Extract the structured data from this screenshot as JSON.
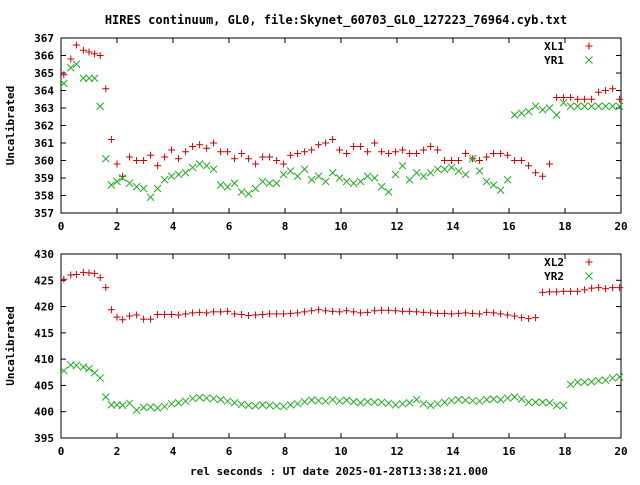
{
  "title": "HIRES continuum, GL0, file:Skynet_60703_GL0_127223_76964.cyb.txt",
  "xlabel": "rel seconds : UT date 2025-01-28T13:38:21.000",
  "colors": {
    "red": "#cc0000",
    "green": "#22aa22",
    "axis": "#000000"
  },
  "chart_data": [
    {
      "type": "scatter",
      "ylabel": "Uncalibrated",
      "xlim": [
        0,
        20
      ],
      "ylim": [
        357,
        367
      ],
      "xticks": [
        0,
        2,
        4,
        6,
        8,
        10,
        12,
        14,
        16,
        18,
        20
      ],
      "yticks": [
        357,
        358,
        359,
        360,
        361,
        362,
        363,
        364,
        365,
        366,
        367
      ],
      "legend_position": "top-right",
      "series": [
        {
          "name": "XL1",
          "marker": "plus",
          "color": "#cc0000",
          "x": [
            0.1,
            0.35,
            0.55,
            0.8,
            1.0,
            1.2,
            1.4,
            1.6,
            1.8,
            2.0,
            2.2,
            2.45,
            2.7,
            2.95,
            3.2,
            3.45,
            3.7,
            3.95,
            4.2,
            4.45,
            4.7,
            4.95,
            5.2,
            5.45,
            5.7,
            5.95,
            6.2,
            6.45,
            6.7,
            6.95,
            7.2,
            7.45,
            7.7,
            7.95,
            8.2,
            8.45,
            8.7,
            8.95,
            9.2,
            9.45,
            9.7,
            9.95,
            10.2,
            10.45,
            10.7,
            10.95,
            11.2,
            11.45,
            11.7,
            11.95,
            12.2,
            12.45,
            12.7,
            12.95,
            13.2,
            13.45,
            13.7,
            13.95,
            14.2,
            14.45,
            14.7,
            14.95,
            15.2,
            15.45,
            15.7,
            15.95,
            16.2,
            16.45,
            16.7,
            16.95,
            17.2,
            17.45,
            17.7,
            17.95,
            18.2,
            18.45,
            18.7,
            18.95,
            19.2,
            19.45,
            19.7,
            19.95
          ],
          "y": [
            364.9,
            365.8,
            366.6,
            366.3,
            366.2,
            366.1,
            366.0,
            364.1,
            361.2,
            359.8,
            359.1,
            360.2,
            360.0,
            360.0,
            360.3,
            359.7,
            360.2,
            360.6,
            360.1,
            360.5,
            360.8,
            360.9,
            360.7,
            361.0,
            360.5,
            360.5,
            360.1,
            360.4,
            360.1,
            359.8,
            360.2,
            360.2,
            360.0,
            359.8,
            360.3,
            360.4,
            360.5,
            360.6,
            360.9,
            361.0,
            361.2,
            360.6,
            360.4,
            360.8,
            360.8,
            360.5,
            361.0,
            360.5,
            360.4,
            360.5,
            360.6,
            360.4,
            360.4,
            360.6,
            360.8,
            360.6,
            360.0,
            360.0,
            360.0,
            360.4,
            360.1,
            360.0,
            360.2,
            360.4,
            360.4,
            360.3,
            360.0,
            360.0,
            359.7,
            359.3,
            359.1,
            359.8,
            363.6,
            363.6,
            363.6,
            363.5,
            363.5,
            363.5,
            363.9,
            364.0,
            364.1,
            363.5
          ],
          "x_override_note": ""
        },
        {
          "name": "YR1",
          "marker": "cross",
          "color": "#22aa22",
          "x": [
            0.1,
            0.35,
            0.55,
            0.8,
            1.0,
            1.2,
            1.4,
            1.6,
            1.8,
            2.0,
            2.2,
            2.45,
            2.7,
            2.95,
            3.2,
            3.45,
            3.7,
            3.95,
            4.2,
            4.45,
            4.7,
            4.95,
            5.2,
            5.45,
            5.7,
            5.95,
            6.2,
            6.45,
            6.7,
            6.95,
            7.2,
            7.45,
            7.7,
            7.95,
            8.2,
            8.45,
            8.7,
            8.95,
            9.2,
            9.45,
            9.7,
            9.95,
            10.2,
            10.45,
            10.7,
            10.95,
            11.2,
            11.45,
            11.7,
            11.95,
            12.2,
            12.45,
            12.7,
            12.95,
            13.2,
            13.45,
            13.7,
            13.95,
            14.2,
            14.45,
            14.7,
            14.95,
            15.2,
            15.45,
            15.7,
            15.95,
            16.2,
            16.45,
            16.7,
            16.95,
            17.2,
            17.45,
            17.7,
            17.95,
            18.2,
            18.45,
            18.7,
            18.95,
            19.2,
            19.45,
            19.7,
            19.95
          ],
          "y": [
            364.4,
            365.3,
            365.5,
            364.7,
            364.7,
            364.7,
            363.1,
            360.1,
            358.6,
            358.8,
            359.0,
            358.7,
            358.5,
            358.4,
            357.9,
            358.4,
            358.9,
            359.1,
            359.2,
            359.3,
            359.6,
            359.8,
            359.7,
            359.5,
            358.6,
            358.5,
            358.7,
            358.2,
            358.1,
            358.4,
            358.8,
            358.7,
            358.7,
            359.2,
            359.4,
            359.1,
            359.5,
            358.9,
            359.1,
            358.8,
            359.3,
            359.0,
            358.8,
            358.7,
            358.8,
            359.1,
            359.0,
            358.5,
            358.2,
            359.2,
            359.7,
            358.9,
            359.3,
            359.1,
            359.3,
            359.5,
            359.5,
            359.6,
            359.4,
            359.2,
            360.1,
            359.4,
            358.8,
            358.6,
            358.3,
            358.9,
            362.6,
            362.7,
            362.8,
            363.1,
            362.9,
            363.0,
            362.6,
            363.3,
            363.1,
            363.1,
            363.1,
            363.1,
            363.1,
            363.1,
            363.1,
            363.1
          ]
        }
      ]
    },
    {
      "type": "scatter",
      "ylabel": "Uncalibrated",
      "xlim": [
        0,
        20
      ],
      "ylim": [
        395,
        430
      ],
      "xticks": [
        0,
        2,
        4,
        6,
        8,
        10,
        12,
        14,
        16,
        18,
        20
      ],
      "yticks": [
        395,
        400,
        405,
        410,
        415,
        420,
        425,
        430
      ],
      "legend_position": "top-right",
      "series": [
        {
          "name": "XL2",
          "marker": "plus",
          "color": "#cc0000",
          "x": [
            0.1,
            0.35,
            0.55,
            0.8,
            1.0,
            1.2,
            1.4,
            1.6,
            1.8,
            2.0,
            2.2,
            2.45,
            2.7,
            2.95,
            3.2,
            3.45,
            3.7,
            3.95,
            4.2,
            4.45,
            4.7,
            4.95,
            5.2,
            5.45,
            5.7,
            5.95,
            6.2,
            6.45,
            6.7,
            6.95,
            7.2,
            7.45,
            7.7,
            7.95,
            8.2,
            8.45,
            8.7,
            8.95,
            9.2,
            9.45,
            9.7,
            9.95,
            10.2,
            10.45,
            10.7,
            10.95,
            11.2,
            11.45,
            11.7,
            11.95,
            12.2,
            12.45,
            12.7,
            12.95,
            13.2,
            13.45,
            13.7,
            13.95,
            14.2,
            14.45,
            14.7,
            14.95,
            15.2,
            15.45,
            15.7,
            15.95,
            16.2,
            16.45,
            16.7,
            16.95,
            17.2,
            17.45,
            17.7,
            17.95,
            18.2,
            18.45,
            18.7,
            18.95,
            19.2,
            19.45,
            19.7,
            19.95
          ],
          "y": [
            425.2,
            426.0,
            426.1,
            426.5,
            426.4,
            426.3,
            425.5,
            423.6,
            419.4,
            418.0,
            417.5,
            418.2,
            418.4,
            417.6,
            417.6,
            418.5,
            418.5,
            418.5,
            418.4,
            418.6,
            418.8,
            418.9,
            418.8,
            419.0,
            419.0,
            419.1,
            418.6,
            418.5,
            418.3,
            418.4,
            418.5,
            418.6,
            418.6,
            418.6,
            418.7,
            418.8,
            419.0,
            419.2,
            419.4,
            419.2,
            419.1,
            419.0,
            419.2,
            419.0,
            418.8,
            418.9,
            419.2,
            419.3,
            419.3,
            419.2,
            419.1,
            419.1,
            419.0,
            418.9,
            418.8,
            418.7,
            418.7,
            418.6,
            418.7,
            418.8,
            418.7,
            418.6,
            418.9,
            418.8,
            418.6,
            418.4,
            418.2,
            417.9,
            417.7,
            417.9,
            422.7,
            422.8,
            422.8,
            422.9,
            422.9,
            422.9,
            423.2,
            423.5,
            423.6,
            423.4,
            423.6,
            423.6
          ]
        },
        {
          "name": "YR2",
          "marker": "cross",
          "color": "#22aa22",
          "x": [
            0.1,
            0.35,
            0.55,
            0.8,
            1.0,
            1.2,
            1.4,
            1.6,
            1.8,
            2.0,
            2.2,
            2.45,
            2.7,
            2.95,
            3.2,
            3.45,
            3.7,
            3.95,
            4.2,
            4.45,
            4.7,
            4.95,
            5.2,
            5.45,
            5.7,
            5.95,
            6.2,
            6.45,
            6.7,
            6.95,
            7.2,
            7.45,
            7.7,
            7.95,
            8.2,
            8.45,
            8.7,
            8.95,
            9.2,
            9.45,
            9.7,
            9.95,
            10.2,
            10.45,
            10.7,
            10.95,
            11.2,
            11.45,
            11.7,
            11.95,
            12.2,
            12.45,
            12.7,
            12.95,
            13.2,
            13.45,
            13.7,
            13.95,
            14.2,
            14.45,
            14.7,
            14.95,
            15.2,
            15.45,
            15.7,
            15.95,
            16.2,
            16.45,
            16.7,
            16.95,
            17.2,
            17.45,
            17.7,
            17.95,
            18.2,
            18.45,
            18.7,
            18.95,
            19.2,
            19.45,
            19.7,
            19.95
          ],
          "y": [
            407.8,
            408.9,
            408.8,
            408.5,
            408.2,
            407.4,
            406.4,
            402.8,
            401.3,
            401.3,
            401.2,
            401.6,
            400.3,
            400.8,
            400.9,
            400.7,
            401.0,
            401.5,
            401.7,
            402.0,
            402.5,
            402.7,
            402.6,
            402.5,
            402.3,
            402.0,
            401.7,
            401.4,
            401.2,
            401.1,
            401.3,
            401.2,
            401.1,
            401.0,
            401.3,
            401.5,
            401.9,
            402.2,
            402.1,
            402.0,
            402.3,
            402.0,
            402.2,
            401.9,
            401.7,
            401.9,
            401.8,
            401.8,
            401.6,
            401.3,
            401.5,
            401.7,
            402.3,
            401.5,
            401.2,
            401.5,
            401.8,
            402.1,
            402.3,
            402.2,
            402.1,
            402.0,
            402.3,
            402.4,
            402.3,
            402.6,
            402.8,
            402.4,
            401.8,
            401.8,
            401.8,
            401.7,
            401.2,
            401.2,
            405.2,
            405.6,
            405.6,
            405.7,
            405.9,
            406.0,
            406.4,
            406.6
          ]
        }
      ]
    }
  ]
}
